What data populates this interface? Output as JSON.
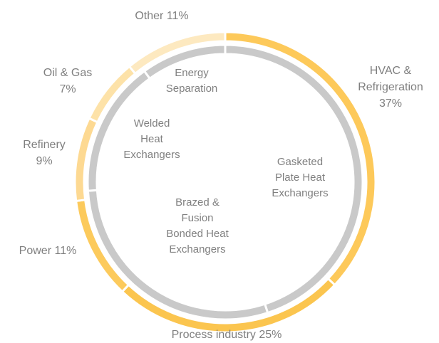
{
  "chart_data": [
    {
      "type": "donut",
      "categories": [
        "Gasketed Plate Heat Exchangers",
        "Brazed & Fusion Bonded Heat Exchangers",
        "Welded Heat Exchangers",
        "Energy Separation"
      ],
      "values": [
        45,
        29,
        16,
        10
      ],
      "color": "#c9c9c9"
    },
    {
      "type": "donut",
      "categories": [
        "HVAC & Refrigeration",
        "Process industry",
        "Power",
        "Refinery",
        "Oil & Gas",
        "Other"
      ],
      "values": [
        37,
        25,
        11,
        9,
        7,
        11
      ],
      "value_labels": [
        "37%",
        "25%",
        "11%",
        "9%",
        "7%",
        "11%"
      ],
      "colors": [
        "#fdc95a",
        "#fbc54f",
        "#fcca5c",
        "#fdd992",
        "#fde2a8",
        "#fde9c0"
      ]
    }
  ]
}
